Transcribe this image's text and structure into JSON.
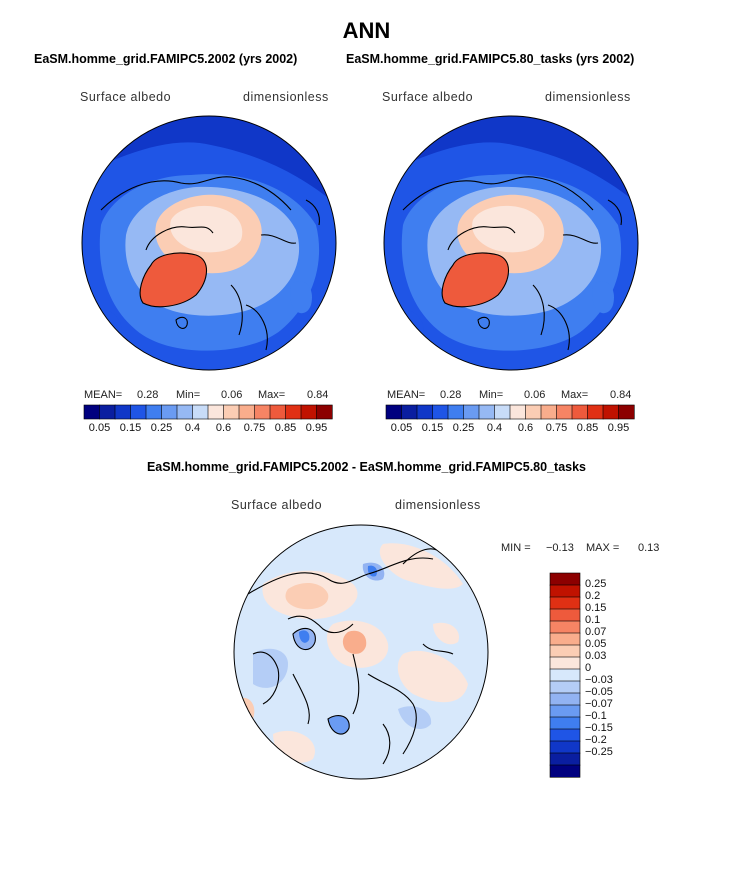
{
  "page": {
    "title": "ANN"
  },
  "panels": [
    {
      "case_title": "EaSM.homme_grid.FAMIPC5.2002 (yrs 2002)",
      "variable": "Surface albedo",
      "units": "dimensionless",
      "stats": {
        "mean_label": "MEAN=",
        "mean": "0.28",
        "min_label": "Min=",
        "min": "0.06",
        "max_label": "Max=",
        "max": "0.84"
      }
    },
    {
      "case_title": "EaSM.homme_grid.FAMIPC5.80_tasks (yrs 2002)",
      "variable": "Surface albedo",
      "units": "dimensionless",
      "stats": {
        "mean_label": "MEAN=",
        "mean": "0.28",
        "min_label": "Min=",
        "min": "0.06",
        "max_label": "Max=",
        "max": "0.84"
      }
    },
    {
      "case_title": "EaSM.homme_grid.FAMIPC5.2002 - EaSM.homme_grid.FAMIPC5.80_tasks",
      "variable": "Surface albedo",
      "units": "dimensionless",
      "stats": {
        "min_label": "MIN =",
        "min": "−0.13",
        "max_label": "MAX =",
        "max": "0.13"
      }
    }
  ],
  "colorbar_abs": {
    "colors": [
      "#00007f",
      "#0a1ea0",
      "#1037c8",
      "#1f55e6",
      "#3f7ef0",
      "#6a9bf2",
      "#96b9f4",
      "#c8dcf8",
      "#fbe6dc",
      "#fbcdb4",
      "#f9ad8c",
      "#f68464",
      "#ee5a3c",
      "#e03014",
      "#c01200",
      "#8c0000"
    ],
    "ticks": [
      "0.05",
      "0.15",
      "0.25",
      "0.4",
      "0.6",
      "0.75",
      "0.85",
      "0.95"
    ]
  },
  "colorbar_diff": {
    "colors": [
      "#8c0000",
      "#c01200",
      "#e03014",
      "#ee5a3c",
      "#f68464",
      "#f9ad8c",
      "#fbcdb4",
      "#fbe6dc",
      "#d7e8fb",
      "#b4cdf6",
      "#92b3f2",
      "#6a9bf2",
      "#3f7ef0",
      "#1f55e6",
      "#1037c8",
      "#0a1ea0",
      "#00007f"
    ],
    "ticks": [
      "0.25",
      "0.2",
      "0.15",
      "0.1",
      "0.07",
      "0.05",
      "0.03",
      "0",
      "−0.03",
      "−0.05",
      "−0.07",
      "−0.1",
      "−0.15",
      "−0.2",
      "−0.25"
    ]
  },
  "chart_data": [
    {
      "type": "heatmap",
      "title": "EaSM.homme_grid.FAMIPC5.2002 (yrs 2002)",
      "projection": "north polar stereographic",
      "variable": "Surface albedo",
      "units": "dimensionless",
      "mean": 0.28,
      "min": 0.06,
      "max": 0.84,
      "contour_levels": [
        0.05,
        0.1,
        0.15,
        0.2,
        0.25,
        0.3,
        0.4,
        0.5,
        0.6,
        0.7,
        0.75,
        0.8,
        0.85,
        0.9,
        0.95
      ],
      "colorbar_tick_labels": [
        "0.05",
        "0.15",
        "0.25",
        "0.4",
        "0.6",
        "0.75",
        "0.85",
        "0.95"
      ]
    },
    {
      "type": "heatmap",
      "title": "EaSM.homme_grid.FAMIPC5.80_tasks (yrs 2002)",
      "projection": "north polar stereographic",
      "variable": "Surface albedo",
      "units": "dimensionless",
      "mean": 0.28,
      "min": 0.06,
      "max": 0.84,
      "contour_levels": [
        0.05,
        0.1,
        0.15,
        0.2,
        0.25,
        0.3,
        0.4,
        0.5,
        0.6,
        0.7,
        0.75,
        0.8,
        0.85,
        0.9,
        0.95
      ],
      "colorbar_tick_labels": [
        "0.05",
        "0.15",
        "0.25",
        "0.4",
        "0.6",
        "0.75",
        "0.85",
        "0.95"
      ]
    },
    {
      "type": "heatmap",
      "title": "EaSM.homme_grid.FAMIPC5.2002 - EaSM.homme_grid.FAMIPC5.80_tasks",
      "projection": "north polar stereographic",
      "variable": "Surface albedo",
      "units": "dimensionless",
      "min": -0.13,
      "max": 0.13,
      "contour_levels": [
        -0.25,
        -0.2,
        -0.15,
        -0.1,
        -0.07,
        -0.05,
        -0.03,
        0,
        0.03,
        0.05,
        0.07,
        0.1,
        0.15,
        0.2,
        0.25
      ],
      "colorbar_tick_labels": [
        "0.25",
        "0.2",
        "0.15",
        "0.1",
        "0.07",
        "0.05",
        "0.03",
        "0",
        "−0.03",
        "−0.05",
        "−0.07",
        "−0.1",
        "−0.15",
        "−0.2",
        "−0.25"
      ]
    }
  ]
}
